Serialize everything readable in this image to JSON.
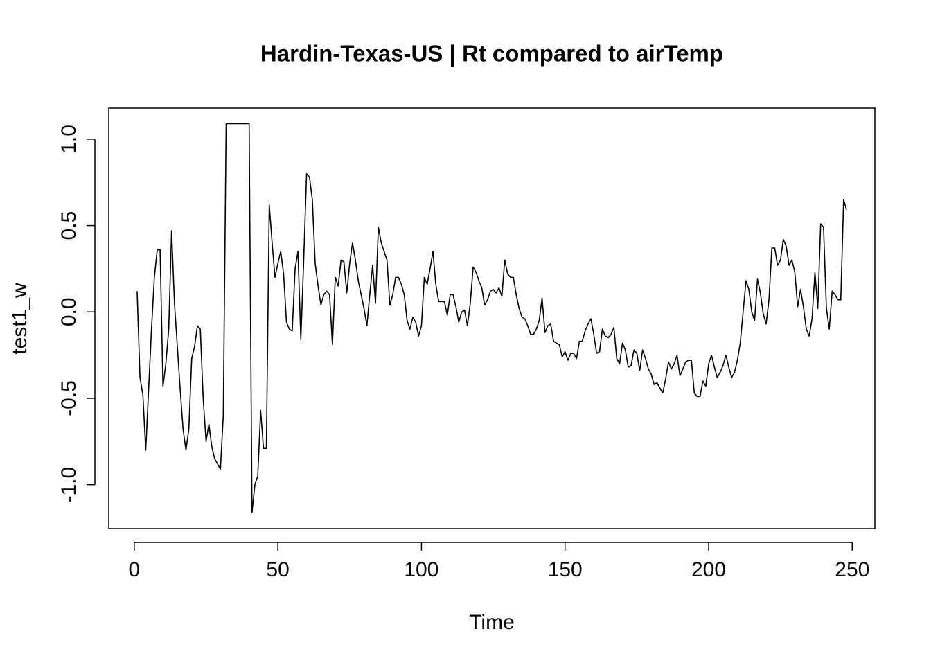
{
  "chart_data": {
    "type": "line",
    "title": "Hardin-Texas-US | Rt compared to airTemp",
    "x_label": "Time",
    "y_label": "test1_w",
    "color": "#000000",
    "x": [
      1,
      2,
      3,
      4,
      5,
      6,
      7,
      8,
      9,
      10,
      11,
      12,
      13,
      14,
      15,
      16,
      17,
      18,
      19,
      20,
      21,
      22,
      23,
      24,
      25,
      26,
      27,
      28,
      29,
      30,
      31,
      32,
      33,
      34,
      35,
      36,
      37,
      38,
      39,
      40,
      41,
      42,
      43,
      44,
      45,
      46,
      47,
      48,
      49,
      50,
      51,
      52,
      53,
      54,
      55,
      56,
      57,
      58,
      59,
      60,
      61,
      62,
      63,
      64,
      65,
      66,
      67,
      68,
      69,
      70,
      71,
      72,
      73,
      74,
      75,
      76,
      77,
      78,
      79,
      80,
      81,
      82,
      83,
      84,
      85,
      86,
      87,
      88,
      89,
      90,
      91,
      92,
      93,
      94,
      95,
      96,
      97,
      98,
      99,
      100,
      101,
      102,
      103,
      104,
      105,
      106,
      107,
      108,
      109,
      110,
      111,
      112,
      113,
      114,
      115,
      116,
      117,
      118,
      119,
      120,
      121,
      122,
      123,
      124,
      125,
      126,
      127,
      128,
      129,
      130,
      131,
      132,
      133,
      134,
      135,
      136,
      137,
      138,
      139,
      140,
      141,
      142,
      143,
      144,
      145,
      146,
      147,
      148,
      149,
      150,
      151,
      152,
      153,
      154,
      155,
      156,
      157,
      158,
      159,
      160,
      161,
      162,
      163,
      164,
      165,
      166,
      167,
      168,
      169,
      170,
      171,
      172,
      173,
      174,
      175,
      176,
      177,
      178,
      179,
      180,
      181,
      182,
      183,
      184,
      185,
      186,
      187,
      188,
      189,
      190,
      191,
      192,
      193,
      194,
      195,
      196,
      197,
      198,
      199,
      200,
      201,
      202,
      203,
      204,
      205,
      206,
      207,
      208,
      209,
      210,
      211,
      212,
      213,
      214,
      215,
      216,
      217,
      218,
      219,
      220,
      221,
      222,
      223,
      224,
      225,
      226,
      227,
      228,
      229,
      230,
      231,
      232,
      233,
      234,
      235,
      236,
      237,
      238,
      239,
      240,
      241,
      242,
      243,
      244,
      245,
      246,
      247,
      248
    ],
    "values": [
      0.12,
      -0.38,
      -0.48,
      -0.8,
      -0.45,
      -0.1,
      0.2,
      0.36,
      0.36,
      -0.43,
      -0.3,
      -0.1,
      0.47,
      0.05,
      -0.2,
      -0.45,
      -0.68,
      -0.8,
      -0.68,
      -0.27,
      -0.2,
      -0.08,
      -0.1,
      -0.5,
      -0.75,
      -0.65,
      -0.78,
      -0.85,
      -0.88,
      -0.91,
      -0.6,
      1.09,
      1.09,
      1.09,
      1.09,
      1.09,
      1.09,
      1.09,
      1.09,
      1.09,
      -1.16,
      -1.0,
      -0.95,
      -0.57,
      -0.79,
      -0.79,
      0.62,
      0.4,
      0.2,
      0.28,
      0.35,
      0.22,
      -0.06,
      -0.1,
      -0.11,
      0.25,
      0.35,
      -0.16,
      0.3,
      0.8,
      0.78,
      0.65,
      0.28,
      0.15,
      0.04,
      0.1,
      0.12,
      0.1,
      -0.19,
      0.2,
      0.15,
      0.3,
      0.29,
      0.11,
      0.28,
      0.4,
      0.3,
      0.18,
      0.1,
      0.02,
      -0.08,
      0.1,
      0.27,
      0.05,
      0.49,
      0.4,
      0.35,
      0.3,
      0.04,
      0.1,
      0.2,
      0.2,
      0.16,
      0.1,
      -0.05,
      -0.1,
      -0.03,
      -0.06,
      -0.14,
      -0.08,
      0.2,
      0.16,
      0.25,
      0.35,
      0.16,
      0.06,
      0.06,
      0.06,
      -0.02,
      0.1,
      0.1,
      0.03,
      -0.06,
      0,
      0.01,
      -0.08,
      0.05,
      0.26,
      0.23,
      0.18,
      0.14,
      0.04,
      0.07,
      0.12,
      0.13,
      0.11,
      0.14,
      0.09,
      0.3,
      0.22,
      0.2,
      0.2,
      0.1,
      0.02,
      -0.03,
      -0.04,
      -0.08,
      -0.13,
      -0.13,
      -0.1,
      -0.05,
      0.08,
      -0.12,
      -0.08,
      -0.07,
      -0.17,
      -0.18,
      -0.19,
      -0.26,
      -0.23,
      -0.28,
      -0.24,
      -0.24,
      -0.27,
      -0.17,
      -0.17,
      -0.11,
      -0.07,
      -0.04,
      -0.13,
      -0.24,
      -0.23,
      -0.1,
      -0.14,
      -0.15,
      -0.13,
      -0.09,
      -0.27,
      -0.3,
      -0.18,
      -0.22,
      -0.32,
      -0.31,
      -0.22,
      -0.24,
      -0.34,
      -0.22,
      -0.27,
      -0.33,
      -0.36,
      -0.42,
      -0.41,
      -0.44,
      -0.47,
      -0.39,
      -0.29,
      -0.33,
      -0.3,
      -0.25,
      -0.37,
      -0.33,
      -0.29,
      -0.28,
      -0.28,
      -0.47,
      -0.49,
      -0.49,
      -0.4,
      -0.43,
      -0.3,
      -0.25,
      -0.32,
      -0.38,
      -0.35,
      -0.31,
      -0.25,
      -0.32,
      -0.38,
      -0.35,
      -0.28,
      -0.18,
      0,
      0.18,
      0.13,
      0,
      -0.05,
      0.19,
      0.11,
      -0.01,
      -0.07,
      0.07,
      0.37,
      0.37,
      0.27,
      0.3,
      0.42,
      0.38,
      0.27,
      0.3,
      0.23,
      0.03,
      0.13,
      0.03,
      -0.1,
      -0.14,
      -0.04,
      0.23,
      0.02,
      0.51,
      0.49,
      0.02,
      -0.1,
      0.12,
      0.1,
      0.07,
      0.07,
      0.65,
      0.59
    ],
    "xlim": [
      -8.88,
      257.88
    ],
    "xticks": [
      0,
      50,
      100,
      150,
      200,
      250
    ],
    "ylim": [
      -1.254,
      1.18
    ],
    "yticks": [
      {
        "value": -1,
        "label": "-1.0"
      },
      -0.5,
      {
        "value": 0,
        "label": "0.0"
      },
      0.5,
      {
        "value": 1,
        "label": "1.0"
      }
    ]
  }
}
